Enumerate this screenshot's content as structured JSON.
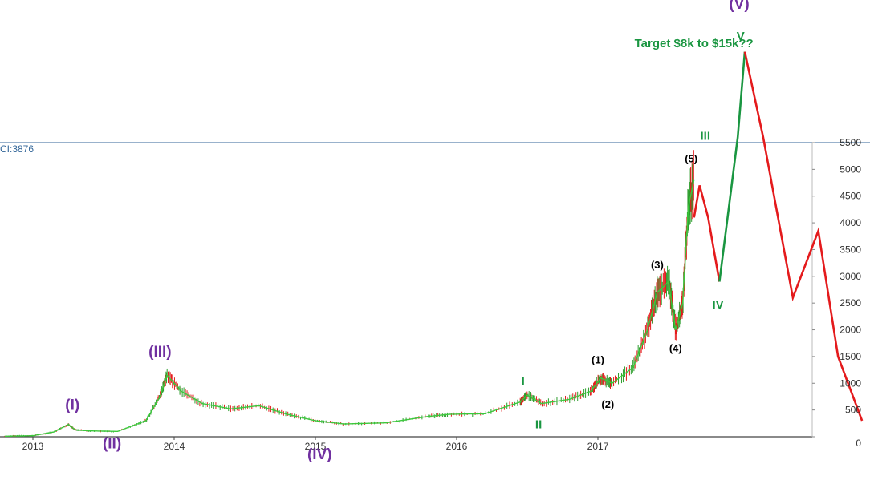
{
  "chart_data": {
    "type": "line",
    "title": "",
    "xlabel": "",
    "ylabel": "",
    "indicator_label": "CI:3876",
    "x_ticks": [
      "2013",
      "2014",
      "2015",
      "2016",
      "2017"
    ],
    "y_ticks": [
      "0",
      "500",
      "1000",
      "1500",
      "2000",
      "2500",
      "3000",
      "3500",
      "4000",
      "4500",
      "5000",
      "5500"
    ],
    "ylim": [
      0,
      5500
    ],
    "xlim": [
      2012.8,
      2018.9
    ],
    "series": [
      {
        "x": [
          2012.8,
          2013.0,
          2013.15,
          2013.25,
          2013.3,
          2013.4,
          2013.6,
          2013.8,
          2013.9,
          2013.95,
          2014.05,
          2014.2,
          2014.4,
          2014.6,
          2014.8,
          2015.0,
          2015.2,
          2015.5,
          2015.8,
          2015.95,
          2016.2,
          2016.45,
          2016.5,
          2016.6,
          2016.8,
          2016.95,
          2017.02,
          2017.1,
          2017.25,
          2017.35,
          2017.42,
          2017.5,
          2017.55,
          2017.6,
          2017.64,
          2017.68
        ],
        "y": [
          10,
          20,
          90,
          230,
          130,
          110,
          100,
          300,
          750,
          1150,
          850,
          620,
          520,
          580,
          420,
          300,
          240,
          260,
          380,
          420,
          430,
          650,
          780,
          620,
          700,
          850,
          1100,
          1000,
          1300,
          2000,
          2700,
          2900,
          2000,
          2500,
          4300,
          4800
        ]
      }
    ],
    "projection": [
      {
        "x": [
          2017.68,
          2017.72,
          2017.78,
          2017.86
        ],
        "y": [
          4100,
          4700,
          4100,
          2900
        ],
        "color": "#e41a1c"
      },
      {
        "x": [
          2017.86,
          2017.99,
          2018.04
        ],
        "y": [
          2900,
          5600,
          7200
        ],
        "color": "#1a9641"
      },
      {
        "x": [
          2018.04,
          2018.17,
          2018.38,
          2018.56,
          2018.7,
          2018.87
        ],
        "y": [
          7200,
          5600,
          2600,
          3850,
          1500,
          300
        ],
        "color": "#e41a1c"
      }
    ],
    "annotations": [
      {
        "text": "(I)",
        "x": 2013.28,
        "y": 500,
        "color": "#7030a0",
        "size": 19
      },
      {
        "text": "(II)",
        "x": 2013.56,
        "y": -220,
        "color": "#7030a0",
        "size": 19
      },
      {
        "text": "(III)",
        "x": 2013.9,
        "y": 1500,
        "color": "#7030a0",
        "size": 19
      },
      {
        "text": "(IV)",
        "x": 2015.03,
        "y": -420,
        "color": "#7030a0",
        "size": 19
      },
      {
        "text": "(V)",
        "x": 2018.0,
        "y": 8000,
        "color": "#7030a0",
        "size": 19
      },
      {
        "text": "I",
        "x": 2016.47,
        "y": 970,
        "color": "#1a9641",
        "size": 15
      },
      {
        "text": "II",
        "x": 2016.58,
        "y": 160,
        "color": "#1a9641",
        "size": 15
      },
      {
        "text": "III",
        "x": 2017.76,
        "y": 5550,
        "color": "#1a9641",
        "size": 15
      },
      {
        "text": "IV",
        "x": 2017.85,
        "y": 2400,
        "color": "#1a9641",
        "size": 15
      },
      {
        "text": "V",
        "x": 2018.01,
        "y": 7420,
        "color": "#1a9641",
        "size": 15
      },
      {
        "text": "(1)",
        "x": 2017.0,
        "y": 1370,
        "color": "#000000",
        "size": 13
      },
      {
        "text": "(2)",
        "x": 2017.07,
        "y": 540,
        "color": "#000000",
        "size": 13
      },
      {
        "text": "(3)",
        "x": 2017.42,
        "y": 3150,
        "color": "#000000",
        "size": 13
      },
      {
        "text": "(4)",
        "x": 2017.55,
        "y": 1590,
        "color": "#000000",
        "size": 13
      },
      {
        "text": "(5)",
        "x": 2017.66,
        "y": 5130,
        "color": "#000000",
        "size": 13
      },
      {
        "text": "Target $8k to $15k??",
        "x": 2017.68,
        "y": 7280,
        "color": "#1a9641",
        "size": 15
      }
    ]
  },
  "colors": {
    "price_line": "#3cc83c",
    "candle_up": "#2e9e2e",
    "candle_down": "#e41a1c",
    "axis": "#336699"
  }
}
